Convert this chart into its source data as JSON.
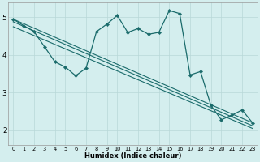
{
  "xlabel": "Humidex (Indice chaleur)",
  "bg_color": "#d4eeee",
  "line_color": "#1a6b6b",
  "grid_color": "#b8d8d8",
  "xlim": [
    -0.5,
    23.5
  ],
  "ylim": [
    1.6,
    5.4
  ],
  "xticks": [
    0,
    1,
    2,
    3,
    4,
    5,
    6,
    7,
    8,
    9,
    10,
    11,
    12,
    13,
    14,
    15,
    16,
    17,
    18,
    19,
    20,
    21,
    22,
    23
  ],
  "yticks": [
    2,
    3,
    4,
    5
  ],
  "jagged_line": {
    "x": [
      0,
      1,
      2,
      3,
      4,
      5,
      6,
      7,
      8,
      9,
      10,
      11,
      12,
      13,
      14,
      15,
      16,
      17,
      18,
      19,
      20,
      21,
      22,
      23
    ],
    "y": [
      4.95,
      4.78,
      4.62,
      4.22,
      3.82,
      3.68,
      3.45,
      3.65,
      4.62,
      4.82,
      5.05,
      4.6,
      4.7,
      4.55,
      4.6,
      5.18,
      5.1,
      3.47,
      3.56,
      2.66,
      2.28,
      2.4,
      2.54,
      2.2
    ]
  },
  "straight1": {
    "x": [
      0,
      23
    ],
    "y": [
      4.95,
      2.2
    ]
  },
  "straight2": {
    "x": [
      0,
      23
    ],
    "y": [
      4.75,
      2.05
    ]
  },
  "straight3": {
    "x": [
      0,
      23
    ],
    "y": [
      4.88,
      2.12
    ]
  }
}
